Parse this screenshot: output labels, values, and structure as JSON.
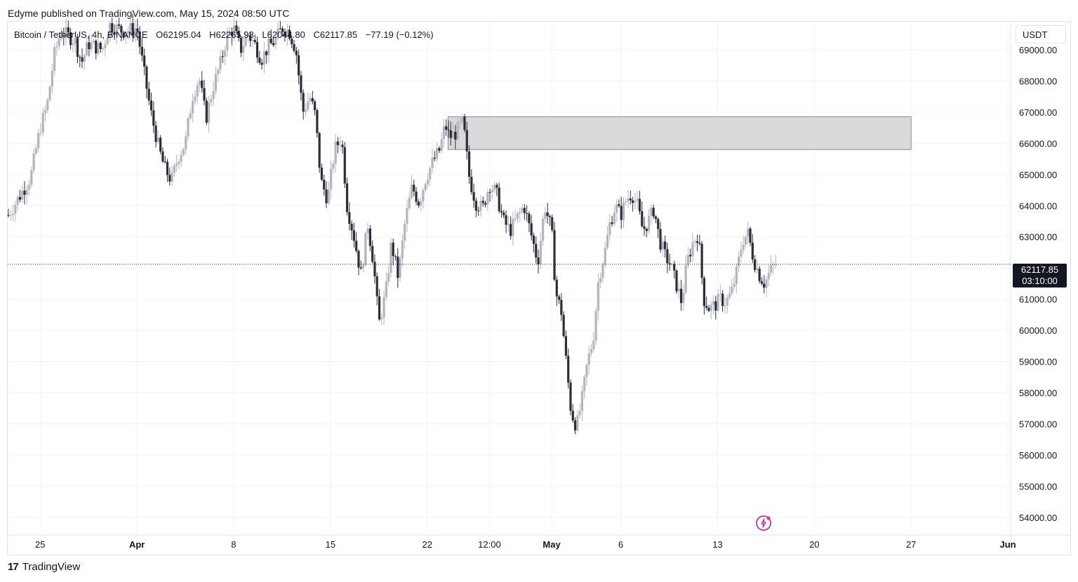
{
  "header": {
    "publisher": "Edyme published on TradingView.com, May 15, 2024 08:50 UTC"
  },
  "legend": {
    "symbol": "Bitcoin / TetherUS, 4h, BINANCE",
    "open": "O62195.04",
    "high": "H62265.98",
    "low": "L62044.80",
    "close": "C62117.85",
    "change": "−77.19 (−0.12%)"
  },
  "currency": "USDT",
  "last_price": {
    "price": "62117.85",
    "countdown": "03:10:00"
  },
  "footer": {
    "brand": "TradingView"
  },
  "colors": {
    "up": "#b2b5be",
    "down": "#2a2e39",
    "zone_fill": "#d6d6d8",
    "zone_border": "#8c8c8e"
  },
  "chart_data": {
    "type": "candlestick",
    "y_axis_labels": [
      "69000.00",
      "68000.00",
      "67000.00",
      "66000.00",
      "65000.00",
      "64000.00",
      "63000.00",
      "62000.00",
      "61000.00",
      "60000.00",
      "59000.00",
      "58000.00",
      "57000.00",
      "56000.00",
      "55000.00",
      "54000.00"
    ],
    "y_range": [
      53500,
      69900
    ],
    "x_axis_labels": [
      {
        "label": "25",
        "t": 2
      },
      {
        "label": "Apr",
        "t": 9
      },
      {
        "label": "8",
        "t": 16
      },
      {
        "label": "15",
        "t": 23
      },
      {
        "label": "22",
        "t": 30
      },
      {
        "label": "12:00",
        "t": 34.5
      },
      {
        "label": "May",
        "t": 39
      },
      {
        "label": "6",
        "t": 44
      },
      {
        "label": "13",
        "t": 51
      },
      {
        "label": "20",
        "t": 58
      },
      {
        "label": "27",
        "t": 65
      },
      {
        "label": "Jun",
        "t": 72
      }
    ],
    "x_range": [
      -0.35,
      72.2
    ],
    "zone": {
      "t_start": 31.5,
      "t_end": 65,
      "low": 65800,
      "high": 66850
    },
    "last_price_value": 62117.85,
    "price_path": [
      [
        -0.3,
        63700
      ],
      [
        0.5,
        64300
      ],
      [
        1.3,
        64900
      ],
      [
        2,
        66500
      ],
      [
        2.5,
        67200
      ],
      [
        3,
        68800
      ],
      [
        3.5,
        69600
      ],
      [
        4.5,
        69300
      ],
      [
        5,
        68600
      ],
      [
        5.5,
        69200
      ],
      [
        6.5,
        69000
      ],
      [
        7,
        69800
      ],
      [
        8,
        69600
      ],
      [
        9,
        69700
      ],
      [
        9.5,
        68300
      ],
      [
        10,
        67000
      ],
      [
        10.6,
        65800
      ],
      [
        11,
        65200
      ],
      [
        11.5,
        64800
      ],
      [
        12,
        65600
      ],
      [
        12.5,
        66000
      ],
      [
        13,
        67500
      ],
      [
        13.5,
        68100
      ],
      [
        14,
        66800
      ],
      [
        14.5,
        67800
      ],
      [
        15,
        68500
      ],
      [
        15.5,
        69400
      ],
      [
        16,
        69700
      ],
      [
        16.5,
        69000
      ],
      [
        17,
        69500
      ],
      [
        17.5,
        69200
      ],
      [
        18,
        68700
      ],
      [
        18.5,
        69100
      ],
      [
        19,
        69300
      ],
      [
        19.5,
        69700
      ],
      [
        20,
        69600
      ],
      [
        20.5,
        69000
      ],
      [
        21,
        67000
      ],
      [
        21.5,
        67500
      ],
      [
        21.9,
        66900
      ],
      [
        22.3,
        64800
      ],
      [
        22.8,
        64200
      ],
      [
        23.3,
        65800
      ],
      [
        23.8,
        66200
      ],
      [
        24.2,
        64000
      ],
      [
        24.7,
        63000
      ],
      [
        25.2,
        61800
      ],
      [
        25.7,
        63400
      ],
      [
        26.1,
        62200
      ],
      [
        26.5,
        60200
      ],
      [
        27,
        61200
      ],
      [
        27.4,
        62800
      ],
      [
        27.9,
        61700
      ],
      [
        28.4,
        63500
      ],
      [
        28.9,
        64600
      ],
      [
        29.4,
        64100
      ],
      [
        29.9,
        64900
      ],
      [
        30.4,
        65400
      ],
      [
        30.9,
        65800
      ],
      [
        31.3,
        66600
      ],
      [
        31.6,
        66200
      ],
      [
        32,
        66300
      ],
      [
        32.3,
        66500
      ],
      [
        32.6,
        66700
      ],
      [
        33,
        65000
      ],
      [
        33.5,
        64100
      ],
      [
        34,
        63900
      ],
      [
        34.5,
        64700
      ],
      [
        35,
        64400
      ],
      [
        35.5,
        63500
      ],
      [
        36,
        63200
      ],
      [
        36.5,
        63600
      ],
      [
        37,
        64000
      ],
      [
        37.5,
        63100
      ],
      [
        38,
        62200
      ],
      [
        38.5,
        64000
      ],
      [
        39,
        63200
      ],
      [
        39.3,
        61200
      ],
      [
        39.7,
        60600
      ],
      [
        40,
        59200
      ],
      [
        40.4,
        57400
      ],
      [
        40.8,
        56900
      ],
      [
        41.2,
        57800
      ],
      [
        41.6,
        59000
      ],
      [
        42,
        59700
      ],
      [
        42.4,
        61700
      ],
      [
        42.8,
        62400
      ],
      [
        43.2,
        63400
      ],
      [
        43.6,
        64000
      ],
      [
        44,
        63700
      ],
      [
        44.4,
        64200
      ],
      [
        44.8,
        64400
      ],
      [
        45.2,
        64000
      ],
      [
        45.6,
        63200
      ],
      [
        46,
        63500
      ],
      [
        46.4,
        63900
      ],
      [
        46.8,
        62900
      ],
      [
        47.2,
        62400
      ],
      [
        47.6,
        62100
      ],
      [
        48,
        61500
      ],
      [
        48.4,
        60900
      ],
      [
        48.8,
        62200
      ],
      [
        49.2,
        62800
      ],
      [
        49.6,
        63100
      ],
      [
        50,
        61000
      ],
      [
        50.4,
        60700
      ],
      [
        50.8,
        60800
      ],
      [
        51.2,
        61000
      ],
      [
        51.6,
        60900
      ],
      [
        52,
        61200
      ],
      [
        52.4,
        61900
      ],
      [
        52.8,
        62900
      ],
      [
        53.2,
        63100
      ],
      [
        53.6,
        62300
      ],
      [
        54,
        61800
      ],
      [
        54.4,
        61500
      ],
      [
        54.8,
        61900
      ],
      [
        55.2,
        62118
      ]
    ]
  }
}
